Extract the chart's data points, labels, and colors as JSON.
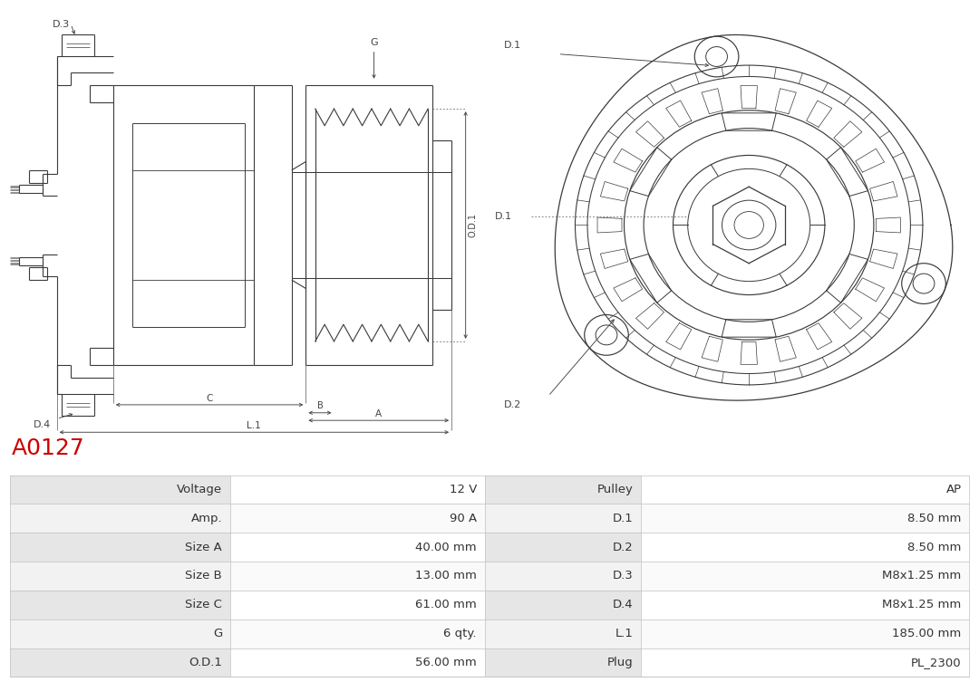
{
  "title": "A0127",
  "title_color": "#cc0000",
  "bg_color": "#ffffff",
  "table_data": {
    "left_col1": [
      "Voltage",
      "Amp.",
      "Size A",
      "Size B",
      "Size C",
      "G",
      "O.D.1"
    ],
    "left_col2": [
      "12 V",
      "90 A",
      "40.00 mm",
      "13.00 mm",
      "61.00 mm",
      "6 qty.",
      "56.00 mm"
    ],
    "right_col1": [
      "Pulley",
      "D.1",
      "D.2",
      "D.3",
      "D.4",
      "L.1",
      "Plug"
    ],
    "right_col2": [
      "AP",
      "8.50 mm",
      "8.50 mm",
      "M8x1.25 mm",
      "M8x1.25 mm",
      "185.00 mm",
      "PL_2300"
    ]
  },
  "text_color": "#333333",
  "font_size_title": 18,
  "font_size_table": 9.5
}
